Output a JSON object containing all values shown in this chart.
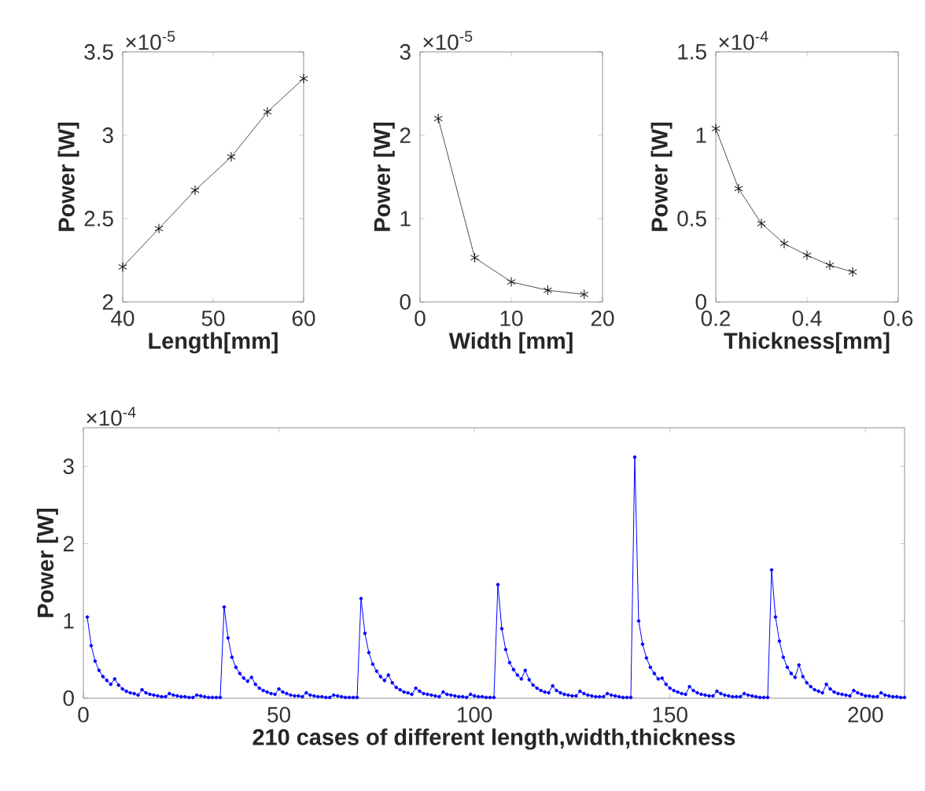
{
  "chart_data": [
    {
      "type": "line",
      "xlabel": "Length[mm]",
      "ylabel": "Power [W]",
      "annotations": [
        "×10$^{-5}$"
      ],
      "color": "#505050",
      "marker": "cross",
      "x": [
        40,
        44,
        48,
        52,
        56,
        60
      ],
      "values": [
        2.21,
        2.44,
        2.67,
        2.87,
        3.14,
        3.34
      ],
      "xlim": [
        40,
        60
      ],
      "xticks": [
        40,
        50,
        60
      ],
      "ylim": [
        2,
        3.5
      ],
      "yticks": [
        2,
        2.5,
        3,
        3.5
      ]
    },
    {
      "type": "line",
      "xlabel": "Width [mm]",
      "ylabel": "Power [W]",
      "annotations": [
        "×10$^{-5}$"
      ],
      "color": "#505050",
      "marker": "cross",
      "x": [
        2,
        6,
        10,
        14,
        18
      ],
      "values": [
        2.2,
        0.53,
        0.24,
        0.14,
        0.09
      ],
      "xlim": [
        0,
        20
      ],
      "xticks": [
        0,
        10,
        20
      ],
      "ylim": [
        0,
        3
      ],
      "yticks": [
        0,
        1,
        2,
        3
      ]
    },
    {
      "type": "line",
      "xlabel": "Thickness[mm]",
      "ylabel": "Power [W]",
      "annotations": [
        "×10$^{-4}$"
      ],
      "color": "#505050",
      "marker": "cross",
      "x": [
        0.2,
        0.25,
        0.3,
        0.35,
        0.4,
        0.45,
        0.5
      ],
      "values": [
        1.04,
        0.68,
        0.47,
        0.35,
        0.28,
        0.22,
        0.18
      ],
      "xlim": [
        0.2,
        0.6
      ],
      "xticks": [
        0.2,
        0.4,
        0.6
      ],
      "ylim": [
        0,
        1.5
      ],
      "yticks": [
        0,
        0.5,
        1,
        1.5
      ]
    },
    {
      "type": "line",
      "xlabel": "210 cases of different length,width,thickness",
      "ylabel": "Power [W]",
      "annotations": [
        "×10$^{-4}$"
      ],
      "color": "#0000ff",
      "marker": "circle",
      "x": [
        1,
        2,
        3,
        4,
        5,
        6,
        7,
        8,
        9,
        10,
        11,
        12,
        13,
        14,
        15,
        16,
        17,
        18,
        19,
        20,
        21,
        22,
        23,
        24,
        25,
        26,
        27,
        28,
        29,
        30,
        31,
        32,
        33,
        34,
        35,
        36,
        37,
        38,
        39,
        40,
        41,
        42,
        43,
        44,
        45,
        46,
        47,
        48,
        49,
        50,
        51,
        52,
        53,
        54,
        55,
        56,
        57,
        58,
        59,
        60,
        61,
        62,
        63,
        64,
        65,
        66,
        67,
        68,
        69,
        70,
        71,
        72,
        73,
        74,
        75,
        76,
        77,
        78,
        79,
        80,
        81,
        82,
        83,
        84,
        85,
        86,
        87,
        88,
        89,
        90,
        91,
        92,
        93,
        94,
        95,
        96,
        97,
        98,
        99,
        100,
        101,
        102,
        103,
        104,
        105,
        106,
        107,
        108,
        109,
        110,
        111,
        112,
        113,
        114,
        115,
        116,
        117,
        118,
        119,
        120,
        121,
        122,
        123,
        124,
        125,
        126,
        127,
        128,
        129,
        130,
        131,
        132,
        133,
        134,
        135,
        136,
        137,
        138,
        139,
        140,
        141,
        142,
        143,
        144,
        145,
        146,
        147,
        148,
        149,
        150,
        151,
        152,
        153,
        154,
        155,
        156,
        157,
        158,
        159,
        160,
        161,
        162,
        163,
        164,
        165,
        166,
        167,
        168,
        169,
        170,
        171,
        172,
        173,
        174,
        175,
        176,
        177,
        178,
        179,
        180,
        181,
        182,
        183,
        184,
        185,
        186,
        187,
        188,
        189,
        190,
        191,
        192,
        193,
        194,
        195,
        196,
        197,
        198,
        199,
        200,
        201,
        202,
        203,
        204,
        205,
        206,
        207,
        208,
        209,
        210
      ],
      "values": [
        1.05,
        0.68,
        0.48,
        0.36,
        0.28,
        0.23,
        0.18,
        0.25,
        0.17,
        0.12,
        0.09,
        0.07,
        0.06,
        0.04,
        0.11,
        0.07,
        0.05,
        0.04,
        0.03,
        0.02,
        0.02,
        0.06,
        0.04,
        0.03,
        0.02,
        0.02,
        0.01,
        0.01,
        0.04,
        0.03,
        0.02,
        0.01,
        0.01,
        0.01,
        0.01,
        1.18,
        0.78,
        0.53,
        0.4,
        0.32,
        0.26,
        0.22,
        0.27,
        0.18,
        0.13,
        0.1,
        0.08,
        0.06,
        0.05,
        0.12,
        0.08,
        0.06,
        0.04,
        0.03,
        0.03,
        0.02,
        0.07,
        0.04,
        0.03,
        0.02,
        0.02,
        0.01,
        0.01,
        0.04,
        0.03,
        0.02,
        0.01,
        0.01,
        0.01,
        0.01,
        1.29,
        0.84,
        0.59,
        0.44,
        0.35,
        0.28,
        0.23,
        0.3,
        0.2,
        0.14,
        0.11,
        0.08,
        0.07,
        0.05,
        0.13,
        0.09,
        0.06,
        0.05,
        0.04,
        0.03,
        0.02,
        0.08,
        0.05,
        0.04,
        0.03,
        0.02,
        0.02,
        0.01,
        0.05,
        0.03,
        0.02,
        0.02,
        0.01,
        0.01,
        0.01,
        1.47,
        0.9,
        0.63,
        0.46,
        0.37,
        0.3,
        0.25,
        0.36,
        0.24,
        0.17,
        0.13,
        0.1,
        0.08,
        0.07,
        0.16,
        0.1,
        0.07,
        0.05,
        0.04,
        0.03,
        0.03,
        0.09,
        0.06,
        0.04,
        0.03,
        0.02,
        0.02,
        0.02,
        0.06,
        0.04,
        0.03,
        0.02,
        0.01,
        0.01,
        0.01,
        3.12,
        1.0,
        0.7,
        0.52,
        0.4,
        0.32,
        0.25,
        0.26,
        0.18,
        0.13,
        0.1,
        0.08,
        0.06,
        0.05,
        0.15,
        0.1,
        0.07,
        0.05,
        0.04,
        0.03,
        0.03,
        0.09,
        0.06,
        0.04,
        0.03,
        0.02,
        0.02,
        0.02,
        0.06,
        0.04,
        0.03,
        0.02,
        0.01,
        0.01,
        0.01,
        1.66,
        1.05,
        0.74,
        0.53,
        0.4,
        0.32,
        0.27,
        0.43,
        0.28,
        0.2,
        0.15,
        0.11,
        0.09,
        0.07,
        0.18,
        0.12,
        0.08,
        0.06,
        0.05,
        0.04,
        0.03,
        0.1,
        0.07,
        0.05,
        0.03,
        0.03,
        0.02,
        0.02,
        0.07,
        0.04,
        0.03,
        0.02,
        0.02,
        0.01,
        0.01
      ],
      "xlim": [
        0,
        210
      ],
      "xticks": [
        0,
        50,
        100,
        150,
        200
      ],
      "ylim": [
        0,
        3.5
      ],
      "yticks": [
        0,
        1,
        2,
        3
      ]
    }
  ]
}
